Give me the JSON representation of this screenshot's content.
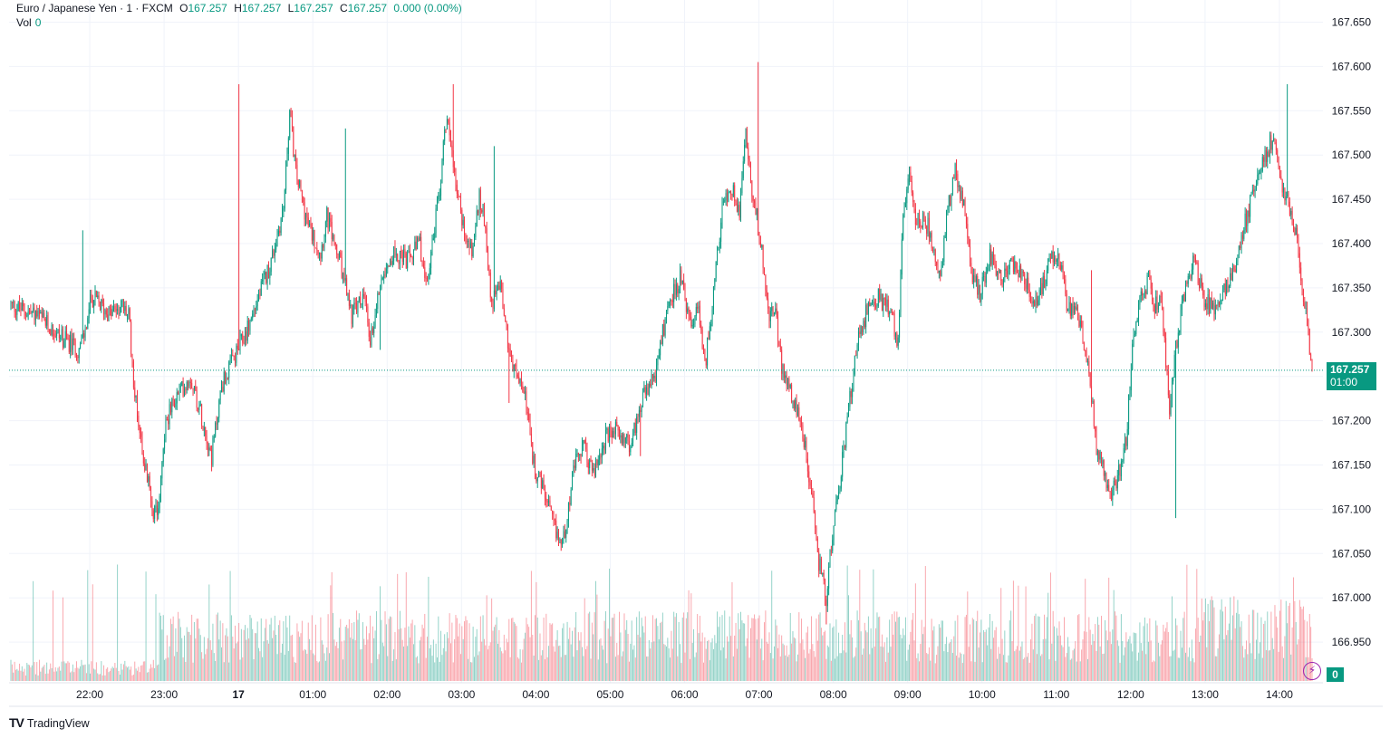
{
  "header": {
    "symbol": "Euro / Japanese Yen · 1 · FXCM",
    "open_label": "O",
    "open": "167.257",
    "high_label": "H",
    "high": "167.257",
    "low_label": "L",
    "low": "167.257",
    "close_label": "C",
    "close": "167.257",
    "change": "0.000 (0.00%)"
  },
  "volume_legend": {
    "label": "Vol",
    "value": "0"
  },
  "current_price": {
    "price": "167.257",
    "countdown": "01:00"
  },
  "volume_badge": "0",
  "brand": {
    "text": "TradingView"
  },
  "colors": {
    "up": "#089981",
    "down": "#f23645",
    "grid": "#f0f3fa",
    "axis_text": "#131722"
  },
  "chart_data": {
    "type": "candlestick",
    "title": "Euro / Japanese Yen · 1 · FXCM",
    "y_ticks": [
      "167.650",
      "167.600",
      "167.550",
      "167.500",
      "167.450",
      "167.400",
      "167.350",
      "167.300",
      "167.250",
      "167.200",
      "167.150",
      "167.100",
      "167.050",
      "167.000",
      "166.950"
    ],
    "ylim": [
      166.93,
      167.665
    ],
    "x_ticks": [
      {
        "label": "22:00",
        "minute": 60
      },
      {
        "label": "23:00",
        "minute": 120
      },
      {
        "label": "17",
        "minute": 180
      },
      {
        "label": "01:00",
        "minute": 240
      },
      {
        "label": "02:00",
        "minute": 300
      },
      {
        "label": "03:00",
        "minute": 360
      },
      {
        "label": "04:00",
        "minute": 420
      },
      {
        "label": "05:00",
        "minute": 480
      },
      {
        "label": "06:00",
        "minute": 540
      },
      {
        "label": "07:00",
        "minute": 600
      },
      {
        "label": "08:00",
        "minute": 660
      },
      {
        "label": "09:00",
        "minute": 720
      },
      {
        "label": "10:00",
        "minute": 780
      },
      {
        "label": "11:00",
        "minute": 840
      },
      {
        "label": "12:00",
        "minute": 900
      },
      {
        "label": "13:00",
        "minute": 960
      },
      {
        "label": "14:00",
        "minute": 1020
      }
    ],
    "start_minute": 0,
    "end_minute": 1050,
    "last_price": 167.257,
    "keypoints": [
      [
        0,
        167.33
      ],
      [
        20,
        167.32
      ],
      [
        40,
        167.295
      ],
      [
        55,
        167.28
      ],
      [
        60,
        167.3
      ],
      [
        65,
        167.34
      ],
      [
        80,
        167.32
      ],
      [
        88,
        167.33
      ],
      [
        95,
        167.32
      ],
      [
        100,
        167.23
      ],
      [
        108,
        167.15
      ],
      [
        115,
        167.1
      ],
      [
        118,
        167.09
      ],
      [
        125,
        167.2
      ],
      [
        135,
        167.23
      ],
      [
        145,
        167.25
      ],
      [
        155,
        167.2
      ],
      [
        162,
        167.16
      ],
      [
        170,
        167.24
      ],
      [
        180,
        167.27
      ],
      [
        190,
        167.3
      ],
      [
        200,
        167.34
      ],
      [
        210,
        167.38
      ],
      [
        220,
        167.44
      ],
      [
        225,
        167.55
      ],
      [
        230,
        167.48
      ],
      [
        240,
        167.42
      ],
      [
        250,
        167.39
      ],
      [
        255,
        167.43
      ],
      [
        265,
        167.38
      ],
      [
        275,
        167.32
      ],
      [
        285,
        167.34
      ],
      [
        290,
        167.29
      ],
      [
        300,
        167.37
      ],
      [
        310,
        167.39
      ],
      [
        320,
        167.38
      ],
      [
        330,
        167.4
      ],
      [
        335,
        167.35
      ],
      [
        345,
        167.45
      ],
      [
        352,
        167.55
      ],
      [
        358,
        167.48
      ],
      [
        365,
        167.42
      ],
      [
        372,
        167.39
      ],
      [
        378,
        167.45
      ],
      [
        382,
        167.43
      ],
      [
        388,
        167.33
      ],
      [
        395,
        167.36
      ],
      [
        400,
        167.3
      ],
      [
        405,
        167.26
      ],
      [
        415,
        167.23
      ],
      [
        422,
        167.15
      ],
      [
        430,
        167.12
      ],
      [
        438,
        167.08
      ],
      [
        445,
        167.06
      ],
      [
        455,
        167.15
      ],
      [
        462,
        167.17
      ],
      [
        470,
        167.14
      ],
      [
        480,
        167.18
      ],
      [
        490,
        167.19
      ],
      [
        500,
        167.17
      ],
      [
        508,
        167.22
      ],
      [
        520,
        167.25
      ],
      [
        530,
        167.33
      ],
      [
        540,
        167.36
      ],
      [
        550,
        167.3
      ],
      [
        555,
        167.33
      ],
      [
        560,
        167.26
      ],
      [
        565,
        167.32
      ],
      [
        575,
        167.45
      ],
      [
        582,
        167.46
      ],
      [
        588,
        167.44
      ],
      [
        593,
        167.53
      ],
      [
        597,
        167.47
      ],
      [
        602,
        167.43
      ],
      [
        607,
        167.38
      ],
      [
        612,
        167.32
      ],
      [
        617,
        167.32
      ],
      [
        622,
        167.26
      ],
      [
        630,
        167.23
      ],
      [
        640,
        167.18
      ],
      [
        646,
        167.12
      ],
      [
        652,
        167.04
      ],
      [
        658,
        167.0
      ],
      [
        662,
        167.06
      ],
      [
        668,
        167.12
      ],
      [
        675,
        167.2
      ],
      [
        682,
        167.28
      ],
      [
        690,
        167.32
      ],
      [
        700,
        167.34
      ],
      [
        710,
        167.32
      ],
      [
        716,
        167.29
      ],
      [
        720,
        167.44
      ],
      [
        725,
        167.47
      ],
      [
        730,
        167.43
      ],
      [
        740,
        167.42
      ],
      [
        750,
        167.36
      ],
      [
        755,
        167.43
      ],
      [
        762,
        167.48
      ],
      [
        768,
        167.45
      ],
      [
        775,
        167.37
      ],
      [
        782,
        167.34
      ],
      [
        790,
        167.39
      ],
      [
        800,
        167.36
      ],
      [
        810,
        167.38
      ],
      [
        818,
        167.36
      ],
      [
        825,
        167.33
      ],
      [
        832,
        167.35
      ],
      [
        840,
        167.39
      ],
      [
        848,
        167.38
      ],
      [
        852,
        167.33
      ],
      [
        860,
        167.32
      ],
      [
        866,
        167.29
      ],
      [
        870,
        167.26
      ],
      [
        876,
        167.17
      ],
      [
        882,
        167.14
      ],
      [
        888,
        167.12
      ],
      [
        894,
        167.14
      ],
      [
        900,
        167.18
      ],
      [
        905,
        167.28
      ],
      [
        912,
        167.34
      ],
      [
        918,
        167.36
      ],
      [
        922,
        167.32
      ],
      [
        928,
        167.35
      ],
      [
        932,
        167.27
      ],
      [
        935,
        167.21
      ],
      [
        940,
        167.28
      ],
      [
        948,
        167.35
      ],
      [
        955,
        167.38
      ],
      [
        962,
        167.34
      ],
      [
        968,
        167.33
      ],
      [
        975,
        167.33
      ],
      [
        982,
        167.36
      ],
      [
        990,
        167.38
      ],
      [
        997,
        167.43
      ],
      [
        1003,
        167.46
      ],
      [
        1008,
        167.49
      ],
      [
        1013,
        167.5
      ],
      [
        1018,
        167.52
      ],
      [
        1023,
        167.48
      ],
      [
        1030,
        167.45
      ],
      [
        1036,
        167.42
      ],
      [
        1042,
        167.35
      ],
      [
        1047,
        167.3
      ],
      [
        1050,
        167.257
      ]
    ],
    "spikes": [
      {
        "minute": 58,
        "high": 167.415
      },
      {
        "minute": 184,
        "high": 167.58
      },
      {
        "minute": 188,
        "low": 167.3
      },
      {
        "minute": 270,
        "high": 167.53
      },
      {
        "minute": 298,
        "low": 167.28
      },
      {
        "minute": 357,
        "high": 167.58
      },
      {
        "minute": 390,
        "high": 167.51
      },
      {
        "minute": 402,
        "low": 167.22
      },
      {
        "minute": 508,
        "low": 167.16
      },
      {
        "minute": 603,
        "high": 167.605
      },
      {
        "minute": 658,
        "low": 166.97
      },
      {
        "minute": 872,
        "high": 167.37
      },
      {
        "minute": 940,
        "low": 167.09
      },
      {
        "minute": 1030,
        "high": 167.58
      },
      {
        "minute": 1038,
        "low": 167.42
      }
    ],
    "volume_max": 130
  }
}
